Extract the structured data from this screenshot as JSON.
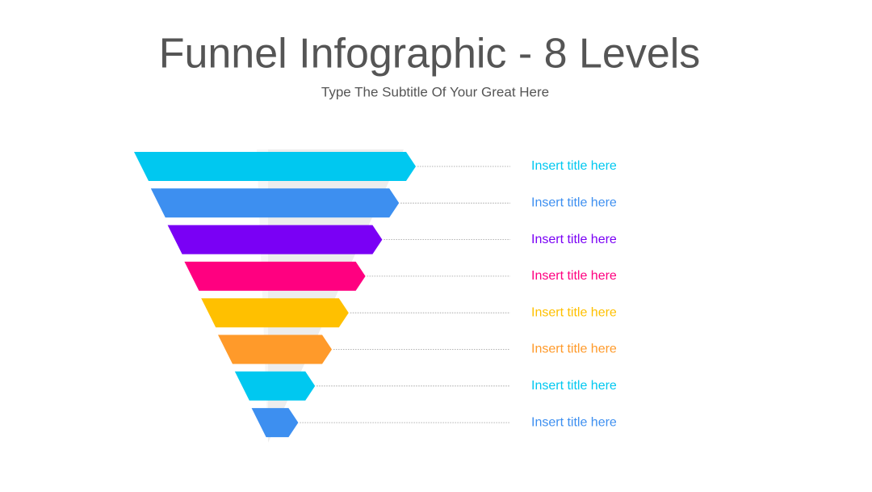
{
  "title": "Funnel Infographic - 8 Levels",
  "subtitle": "Type The Subtitle Of Your Great Here",
  "levels": [
    {
      "label": "Insert title here",
      "color": "#00c8f0"
    },
    {
      "label": "Insert title here",
      "color": "#3d8ff0"
    },
    {
      "label": "Insert title here",
      "color": "#7a00f5"
    },
    {
      "label": "Insert title here",
      "color": "#ff0080"
    },
    {
      "label": "Insert title here",
      "color": "#ffc000"
    },
    {
      "label": "Insert title here",
      "color": "#ff9a2a"
    },
    {
      "label": "Insert title here",
      "color": "#00c8f0"
    },
    {
      "label": "Insert title here",
      "color": "#3d8ff0"
    }
  ]
}
